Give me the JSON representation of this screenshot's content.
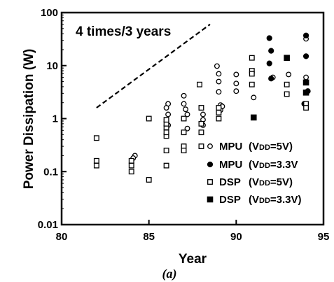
{
  "chart_data": {
    "type": "scatter",
    "xlabel": "Year",
    "ylabel": "Power Dissipation (W)",
    "xlim": [
      80,
      95
    ],
    "ylim": [
      0.01,
      100
    ],
    "yscale": "log",
    "xticks": [
      "80",
      "85",
      "90",
      "95"
    ],
    "yticks": [
      "0.01",
      "0.1",
      "1",
      "10",
      "100"
    ],
    "caption": "(a)",
    "annotation": "4 times/3 years",
    "trend_line": {
      "x": [
        82,
        88.5
      ],
      "y": [
        1.6,
        60
      ]
    },
    "series": [
      {
        "name": "MPU (VDD=5V)",
        "marker": "open-circle",
        "points": [
          [
            84.2,
            0.2
          ],
          [
            84.1,
            0.18
          ],
          [
            86.1,
            1.9
          ],
          [
            86.0,
            1.6
          ],
          [
            86.1,
            1.2
          ],
          [
            86.0,
            0.95
          ],
          [
            86.1,
            0.75
          ],
          [
            87.0,
            2.7
          ],
          [
            87.0,
            1.9
          ],
          [
            87.1,
            1.5
          ],
          [
            87.2,
            1.2
          ],
          [
            87.2,
            0.65
          ],
          [
            88.1,
            1.2
          ],
          [
            88.1,
            0.95
          ],
          [
            88.1,
            0.75
          ],
          [
            88.9,
            9.8
          ],
          [
            89.0,
            7.0
          ],
          [
            89.0,
            5.0
          ],
          [
            89.0,
            3.2
          ],
          [
            89.1,
            1.8
          ],
          [
            89.2,
            1.7
          ],
          [
            89.1,
            1.45
          ],
          [
            90.0,
            6.8
          ],
          [
            90.0,
            4.6
          ],
          [
            90.0,
            3.3
          ],
          [
            91.0,
            2.5
          ],
          [
            92.1,
            6.0
          ],
          [
            93.0,
            6.8
          ],
          [
            94.0,
            32.0
          ],
          [
            94.0,
            6.0
          ]
        ]
      },
      {
        "name": "MPU (VDD=3.3V)",
        "marker": "filled-circle",
        "points": [
          [
            91.9,
            33.0
          ],
          [
            92.0,
            19.0
          ],
          [
            91.9,
            11.0
          ],
          [
            92.0,
            5.7
          ],
          [
            94.0,
            37.0
          ],
          [
            94.0,
            15.0
          ],
          [
            94.1,
            3.3
          ],
          [
            93.9,
            1.9
          ]
        ]
      },
      {
        "name": "DSP (VDD=5V)",
        "marker": "open-square",
        "points": [
          [
            82.0,
            0.43
          ],
          [
            82.0,
            0.16
          ],
          [
            82.0,
            0.13
          ],
          [
            84.0,
            0.16
          ],
          [
            84.0,
            0.13
          ],
          [
            84.0,
            0.1
          ],
          [
            85.0,
            1.0
          ],
          [
            85.0,
            0.07
          ],
          [
            86.0,
            0.47
          ],
          [
            86.0,
            0.55
          ],
          [
            86.0,
            0.68
          ],
          [
            86.0,
            0.8
          ],
          [
            86.0,
            0.95
          ],
          [
            86.0,
            0.25
          ],
          [
            86.0,
            0.13
          ],
          [
            87.0,
            1.0
          ],
          [
            87.0,
            0.55
          ],
          [
            87.0,
            0.3
          ],
          [
            87.0,
            0.25
          ],
          [
            87.9,
            4.4
          ],
          [
            88.0,
            1.6
          ],
          [
            88.0,
            0.8
          ],
          [
            88.0,
            0.55
          ],
          [
            88.0,
            0.3
          ],
          [
            89.0,
            1.6
          ],
          [
            89.0,
            1.3
          ],
          [
            89.0,
            1.0
          ],
          [
            90.9,
            14.0
          ],
          [
            90.9,
            8.0
          ],
          [
            90.9,
            7.0
          ],
          [
            90.9,
            4.4
          ],
          [
            92.9,
            4.4
          ],
          [
            92.9,
            2.9
          ],
          [
            94.0,
            1.9
          ],
          [
            94.0,
            1.6
          ]
        ]
      },
      {
        "name": "DSP (VDD=3.3V)",
        "marker": "filled-square",
        "points": [
          [
            91.0,
            1.05
          ],
          [
            92.9,
            14.0
          ],
          [
            94.0,
            4.8
          ],
          [
            94.0,
            3.1
          ]
        ]
      }
    ],
    "legend": [
      {
        "marker": "open-circle",
        "name": "MPU",
        "cond_prefix": "(V",
        "cond_sub": "DD",
        "cond_suffix": "=5V)"
      },
      {
        "marker": "filled-circle",
        "name": "MPU",
        "cond_prefix": "(V",
        "cond_sub": "DD",
        "cond_suffix": "=3.3V"
      },
      {
        "marker": "open-square",
        "name": "DSP",
        "cond_prefix": "(V",
        "cond_sub": "DD",
        "cond_suffix": "=5V)"
      },
      {
        "marker": "filled-square",
        "name": "DSP",
        "cond_prefix": "(V",
        "cond_sub": "DD",
        "cond_suffix": "=3.3V)"
      }
    ]
  }
}
